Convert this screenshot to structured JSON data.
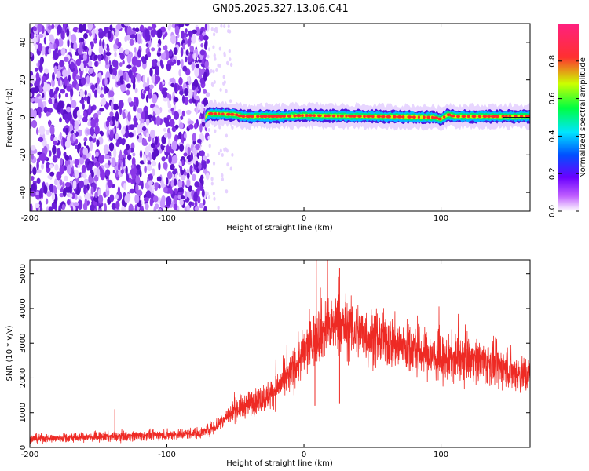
{
  "title": "GN05.2025.327.13.06.C41",
  "colors": {
    "snr_line": "#ee2a24",
    "frame": "#000000",
    "background": "#ffffff",
    "noise_purple": "#7a2be0"
  },
  "chart_data": [
    {
      "type": "heatmap",
      "name": "spectrogram",
      "xlabel": "Height of straight line (km)",
      "ylabel": "Frequency (Hz)",
      "xlim": [
        -200,
        165
      ],
      "ylim": [
        -50,
        50
      ],
      "xticks": [
        -200,
        -100,
        0,
        100
      ],
      "yticks": [
        -40,
        -20,
        0,
        20,
        40
      ],
      "noise_region_x": [
        -200,
        -70
      ],
      "signal_band": {
        "x_start": -72,
        "x_end": 165,
        "center_hz": 0,
        "points": [
          {
            "x": -72,
            "hz": 0
          },
          {
            "x": -70,
            "hz": 2
          },
          {
            "x": -50,
            "hz": 1.5
          },
          {
            "x": -45,
            "hz": 0.5
          },
          {
            "x": -20,
            "hz": 0.5
          },
          {
            "x": 0,
            "hz": 1
          },
          {
            "x": 50,
            "hz": 0.5
          },
          {
            "x": 95,
            "hz": 0
          },
          {
            "x": 100,
            "hz": -1
          },
          {
            "x": 105,
            "hz": 1.5
          },
          {
            "x": 110,
            "hz": 0.5
          },
          {
            "x": 165,
            "hz": 0.5
          }
        ]
      },
      "colorbar": {
        "label": "Normalized spectral amplitude",
        "range": [
          0,
          1
        ],
        "ticks": [
          "0.0",
          "0.2",
          "0.4",
          "0.6",
          "0.8"
        ]
      }
    },
    {
      "type": "line",
      "name": "snr",
      "xlabel": "Height of straight line (km)",
      "ylabel": "SNR (10 * v/v)",
      "xlim": [
        -200,
        165
      ],
      "ylim": [
        0,
        5400
      ],
      "xticks": [
        -200,
        -100,
        0,
        100
      ],
      "yticks": [
        0,
        1000,
        2000,
        3000,
        4000,
        5000
      ],
      "trend": [
        {
          "x": -200,
          "y": 250
        },
        {
          "x": -150,
          "y": 300
        },
        {
          "x": -100,
          "y": 360
        },
        {
          "x": -75,
          "y": 420
        },
        {
          "x": -65,
          "y": 600
        },
        {
          "x": -50,
          "y": 1100
        },
        {
          "x": -25,
          "y": 1500
        },
        {
          "x": -10,
          "y": 2100
        },
        {
          "x": 0,
          "y": 2700
        },
        {
          "x": 10,
          "y": 3300
        },
        {
          "x": 25,
          "y": 3550
        },
        {
          "x": 50,
          "y": 3150
        },
        {
          "x": 75,
          "y": 2900
        },
        {
          "x": 100,
          "y": 2500
        },
        {
          "x": 120,
          "y": 2600
        },
        {
          "x": 140,
          "y": 2350
        },
        {
          "x": 165,
          "y": 2050
        }
      ],
      "spikes": [
        {
          "x": -138,
          "y": 1100
        },
        {
          "x": 9,
          "y": 5400
        },
        {
          "x": 26,
          "y": 5150
        },
        {
          "x": 12,
          "y": 4600
        },
        {
          "x": 26,
          "y": 1250
        },
        {
          "x": 8,
          "y": 1200
        }
      ]
    }
  ]
}
